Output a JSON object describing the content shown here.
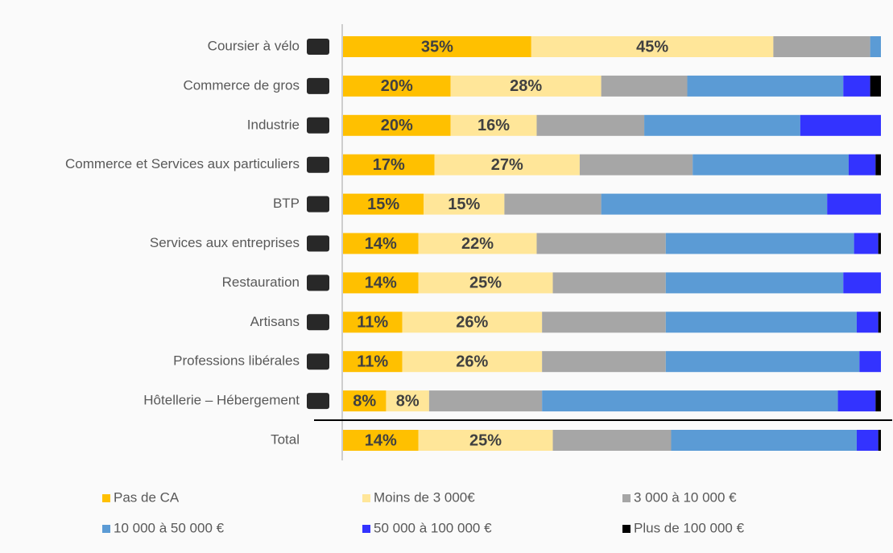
{
  "chart_data": {
    "type": "stacked-bar-horizontal",
    "categories": [
      "Coursier à vélo",
      "Commerce de gros",
      "Industrie",
      "Commerce et Services aux particuliers",
      "BTP",
      "Services aux entreprises",
      "Restauration",
      "Artisans",
      "Professions libérales",
      "Hôtellerie – Hébergement",
      "Total"
    ],
    "xlim": [
      0,
      100
    ],
    "legend": "bottom",
    "series": [
      {
        "name": "Pas de CA",
        "color": "#ffc000",
        "values": [
          35,
          20,
          20,
          17,
          15,
          14,
          14,
          11,
          11,
          8,
          14
        ],
        "value_labels": [
          "35%",
          "20%",
          "20%",
          "17%",
          "15%",
          "14%",
          "14%",
          "11%",
          "11%",
          "8%",
          "14%"
        ]
      },
      {
        "name": "Moins de 3 000€",
        "color": "#ffe699",
        "values": [
          45,
          28,
          16,
          27,
          15,
          22,
          25,
          26,
          26,
          8,
          25
        ],
        "value_labels": [
          "45%",
          "28%",
          "16%",
          "27%",
          "15%",
          "22%",
          "25%",
          "26%",
          "26%",
          "8%",
          "25%"
        ]
      },
      {
        "name": "3 000 à 10 000 €",
        "color": "#a6a6a6",
        "values": [
          18,
          16,
          20,
          21,
          18,
          24,
          21,
          23,
          23,
          21,
          22
        ]
      },
      {
        "name": "10 000 à 50 000 €",
        "color": "#5b9bd5",
        "values": [
          2,
          29,
          29,
          29,
          42,
          35,
          33,
          35.5,
          36,
          55,
          34.5
        ]
      },
      {
        "name": "50 000 à 100 000 €",
        "color": "#3333ff",
        "values": [
          0,
          5,
          15,
          5,
          10,
          4.5,
          7,
          4,
          4,
          7,
          4
        ]
      },
      {
        "name": "Plus de 100 000 €",
        "color": "#000000",
        "values": [
          0,
          2,
          0,
          1,
          0,
          0.5,
          0,
          0.5,
          0,
          1,
          0.5
        ]
      }
    ]
  }
}
